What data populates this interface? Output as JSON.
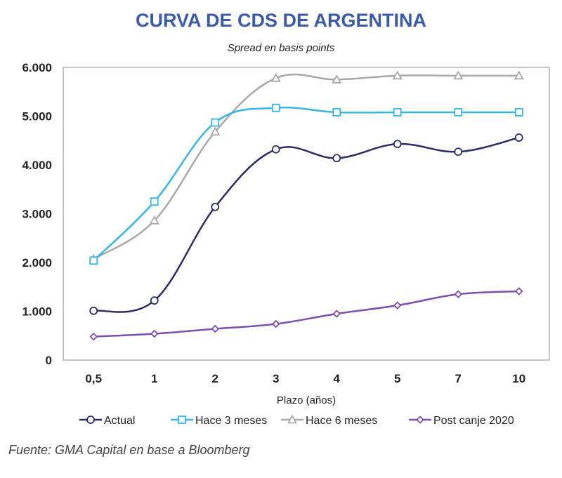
{
  "chart_data": {
    "type": "line",
    "title": "CURVA DE CDS DE ARGENTINA",
    "subtitle": "Spread en basis points",
    "xlabel": "Plazo (años)",
    "ylabel": "",
    "categories": [
      "0,5",
      "1",
      "2",
      "3",
      "4",
      "5",
      "7",
      "10"
    ],
    "ylim": [
      0,
      6000
    ],
    "yticks": [
      0,
      1000,
      2000,
      3000,
      4000,
      5000,
      6000
    ],
    "ytick_labels": [
      "0",
      "1.000",
      "2.000",
      "3.000",
      "4.000",
      "5.000",
      "6.000"
    ],
    "grid": false,
    "legend_position": "bottom",
    "series": [
      {
        "name": "Actual",
        "color": "#2b2d62",
        "marker": "circle",
        "values": [
          1010,
          1220,
          3140,
          4320,
          4140,
          4430,
          4270,
          4560
        ]
      },
      {
        "name": "Hace 3 meses",
        "color": "#3ab4e3",
        "marker": "square",
        "values": [
          2040,
          3250,
          4870,
          5170,
          5080,
          5080,
          5080,
          5080
        ]
      },
      {
        "name": "Hace 6 meses",
        "color": "#a8a8a8",
        "marker": "triangle",
        "values": [
          2070,
          2860,
          4680,
          5780,
          5750,
          5830,
          5830,
          5830
        ]
      },
      {
        "name": "Post canje 2020",
        "color": "#7a4fb0",
        "marker": "diamond",
        "values": [
          480,
          540,
          640,
          740,
          950,
          1120,
          1350,
          1410
        ]
      }
    ]
  },
  "source": "Fuente: GMA Capital en base a Bloomberg"
}
